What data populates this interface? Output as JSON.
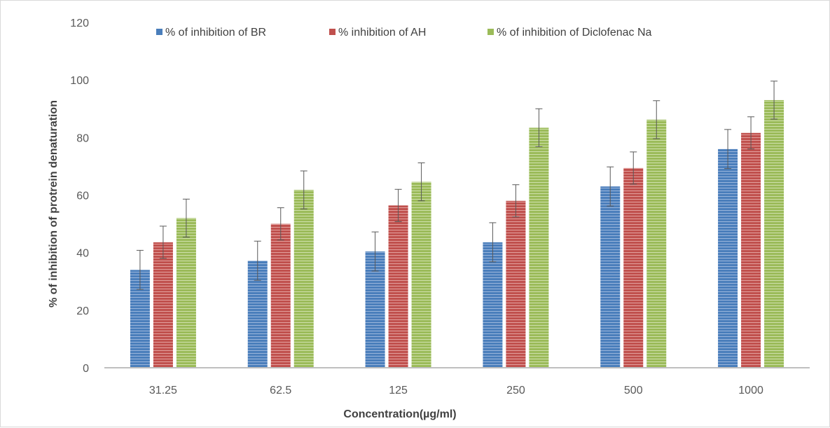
{
  "chart_data": {
    "type": "bar",
    "title": "",
    "xlabel": "Concentration(µg/ml)",
    "ylabel": "% of inhibition of protrein denaturation",
    "categories": [
      "31.25",
      "62.5",
      "125",
      "250",
      "500",
      "1000"
    ],
    "ylim": [
      0,
      120
    ],
    "yticks": [
      0,
      20,
      40,
      60,
      80,
      100,
      120
    ],
    "grid": false,
    "legend_position": "top",
    "series": [
      {
        "name": "% of inhibition of BR",
        "color": "#4a7ebb",
        "values": [
          34,
          37.2,
          40.4,
          43.6,
          63,
          76
        ],
        "errors": [
          6.8,
          6.8,
          6.8,
          6.8,
          6.8,
          6.8
        ]
      },
      {
        "name": "% inhibition of AH",
        "color": "#c0504d",
        "values": [
          43.6,
          50,
          56.4,
          58,
          69.4,
          81.6
        ],
        "errors": [
          5.6,
          5.6,
          5.6,
          5.6,
          5.6,
          5.6
        ]
      },
      {
        "name": "% of inhibition of Diclofenac Na",
        "color": "#9bbb59",
        "values": [
          52,
          61.8,
          64.6,
          83.4,
          86.2,
          93
        ],
        "errors": [
          6.6,
          6.6,
          6.6,
          6.6,
          6.6,
          6.6
        ]
      }
    ]
  }
}
